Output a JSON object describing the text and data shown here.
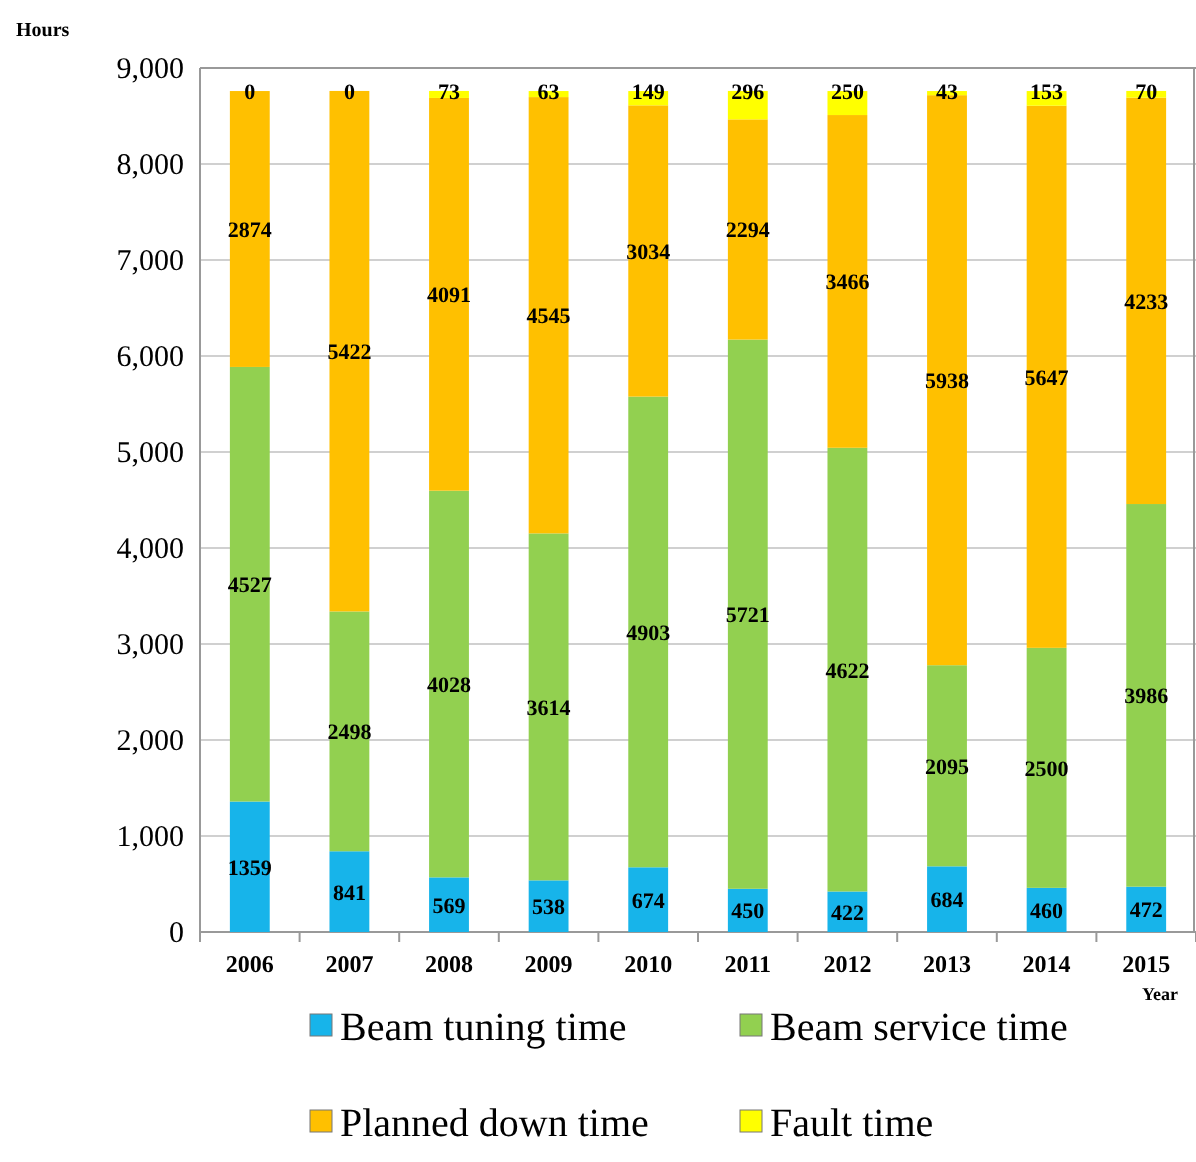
{
  "chart_data": {
    "type": "bar",
    "stacked": true,
    "ylabel": "Hours",
    "xlabel": "Year",
    "categories": [
      "2006",
      "2007",
      "2008",
      "2009",
      "2010",
      "2011",
      "2012",
      "2013",
      "2014",
      "2015"
    ],
    "series": [
      {
        "name": "Beam tuning time",
        "color": "#17b4ea",
        "values": [
          1359,
          841,
          569,
          538,
          674,
          450,
          422,
          684,
          460,
          472
        ]
      },
      {
        "name": "Beam service time",
        "color": "#92d050",
        "values": [
          4527,
          2498,
          4028,
          3614,
          4903,
          5721,
          4622,
          2095,
          2500,
          3986
        ]
      },
      {
        "name": "Planned down time",
        "color": "#ffc000",
        "values": [
          2874,
          5422,
          4091,
          4545,
          3034,
          2294,
          3466,
          5938,
          5647,
          4233
        ]
      },
      {
        "name": "Fault time",
        "color": "#ffff00",
        "values": [
          0,
          0,
          73,
          63,
          149,
          296,
          250,
          43,
          153,
          70
        ]
      }
    ],
    "ylim": [
      0,
      9000
    ],
    "yticks": [
      {
        "value": 0,
        "label": "0"
      },
      {
        "value": 1000,
        "label": "1,000"
      },
      {
        "value": 2000,
        "label": "2,000"
      },
      {
        "value": 3000,
        "label": "3,000"
      },
      {
        "value": 4000,
        "label": "4,000"
      },
      {
        "value": 5000,
        "label": "5,000"
      },
      {
        "value": 6000,
        "label": "6,000"
      },
      {
        "value": 7000,
        "label": "7,000"
      },
      {
        "value": 8000,
        "label": "8,000"
      },
      {
        "value": 9000,
        "label": "9,000"
      }
    ],
    "grid": "y",
    "legend": "bottom",
    "data_labels": true
  }
}
